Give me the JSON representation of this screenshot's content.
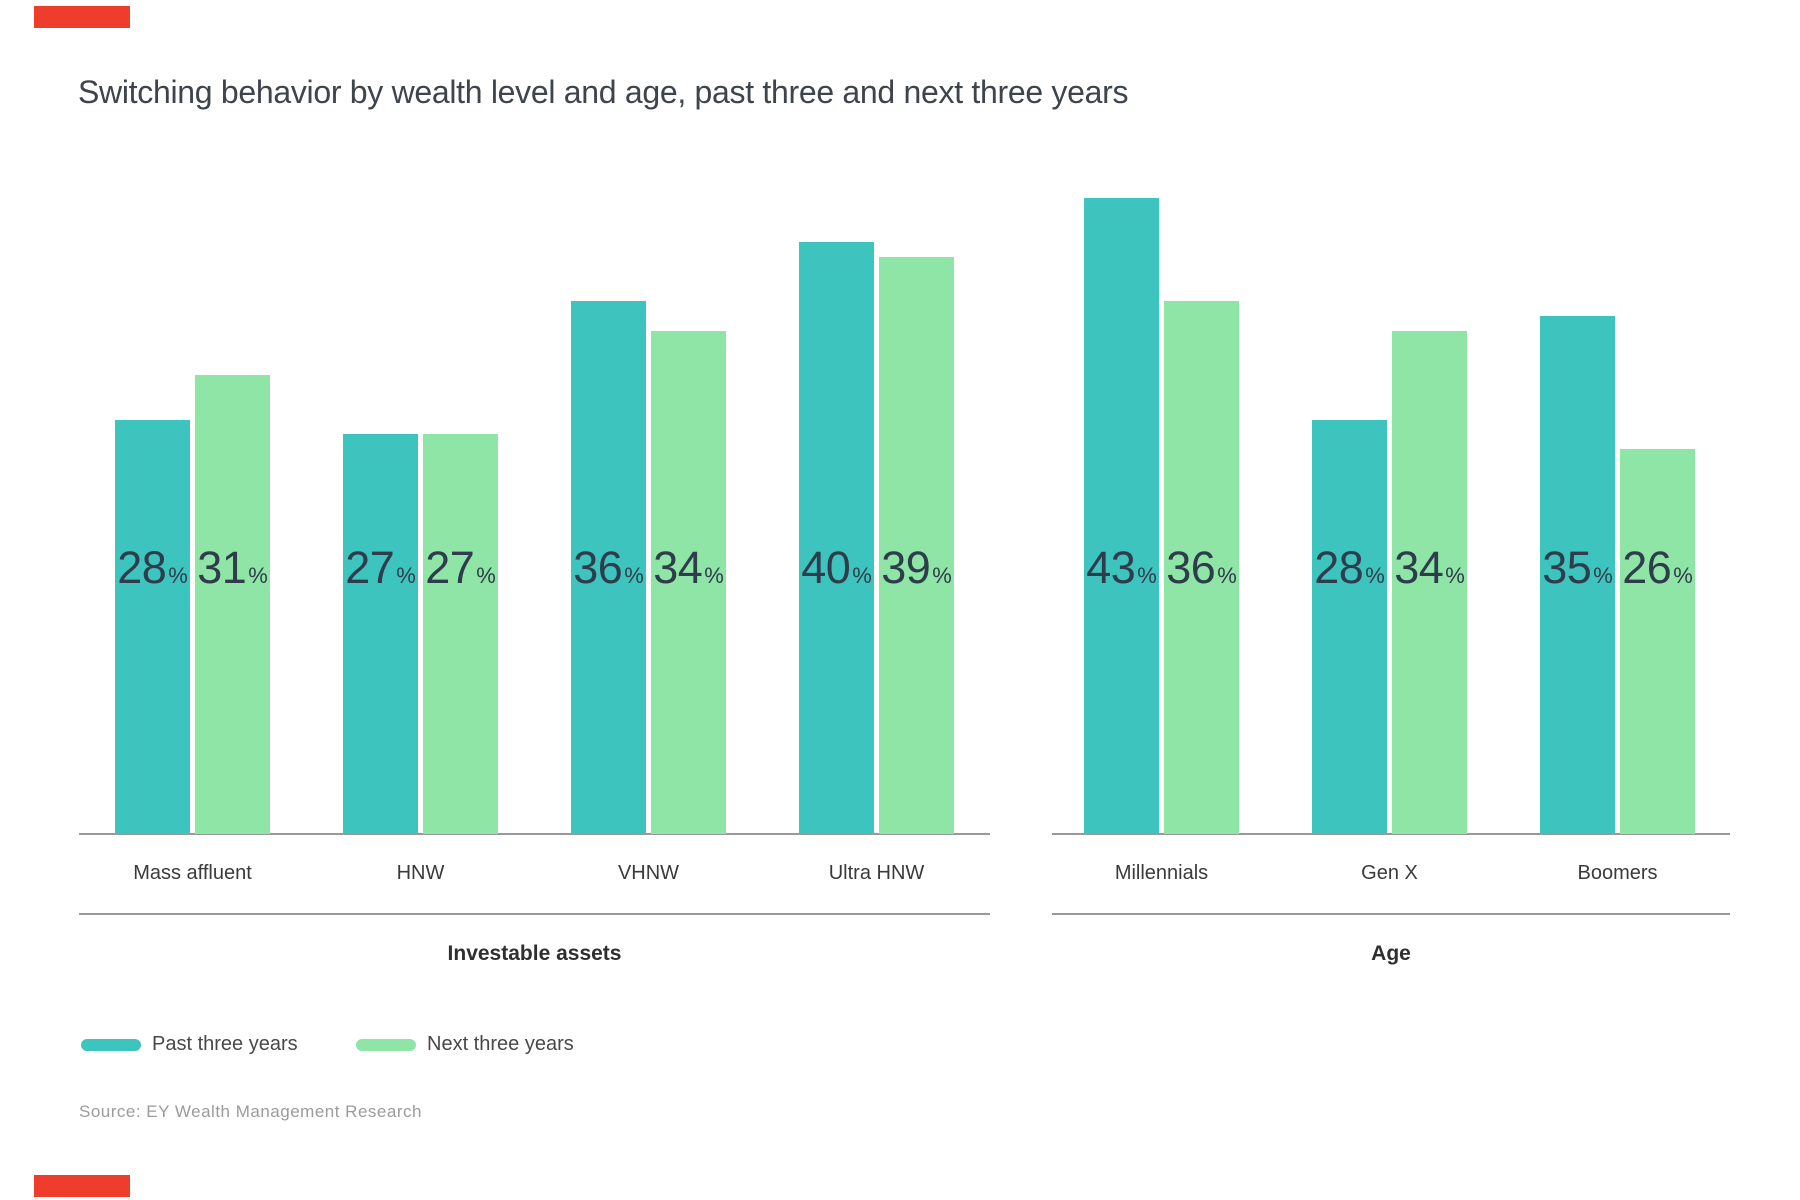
{
  "colors": {
    "past_three_years": "#3EC4BE",
    "next_three_years": "#8FE5A6",
    "brand_mark_red": "#EE3C2D",
    "value_label_text": "#2E3C4B",
    "axis_line": "#999999"
  },
  "legend": {
    "position": "bottom-left",
    "items": [
      {
        "label": "Past three years",
        "color_key": "past_three_years"
      },
      {
        "label": "Next three years",
        "color_key": "next_three_years"
      }
    ]
  },
  "source": "Source: EY Wealth Management Research",
  "chart_data": {
    "type": "bar",
    "title": "Switching behavior by wealth level and age, past three and next three years",
    "unit": "%",
    "value_labels_shown": true,
    "ylim": [
      0,
      45
    ],
    "grid": false,
    "legend_position": "bottom-left",
    "groups": [
      {
        "group_label": "Investable assets",
        "categories": [
          "Mass affluent",
          "HNW",
          "VHNW",
          "Ultra HNW"
        ],
        "series": [
          {
            "name": "Past three years",
            "values": [
              28,
              27,
              36,
              40
            ]
          },
          {
            "name": "Next three years",
            "values": [
              31,
              27,
              34,
              39
            ]
          }
        ]
      },
      {
        "group_label": "Age",
        "categories": [
          "Millennials",
          "Gen X",
          "Boomers"
        ],
        "series": [
          {
            "name": "Past three years",
            "values": [
              43,
              28,
              35
            ]
          },
          {
            "name": "Next three years",
            "values": [
              36,
              34,
              26
            ]
          }
        ]
      }
    ]
  }
}
